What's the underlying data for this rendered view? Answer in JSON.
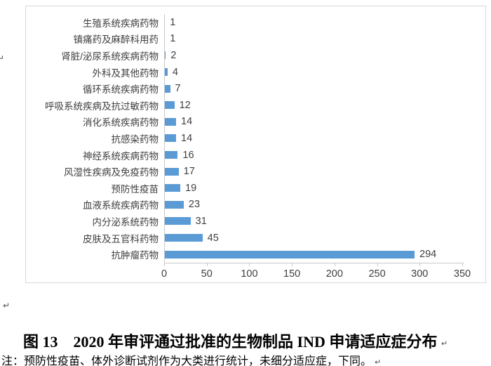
{
  "chart_data": {
    "type": "bar",
    "orientation": "horizontal",
    "categories": [
      "生殖系统疾病药物",
      "镇痛药及麻醉科用药",
      "肾脏/泌尿系统疾病药物",
      "外科及其他药物",
      "循环系统疾病药物",
      "呼吸系统疾病及抗过敏药物",
      "消化系统疾病药物",
      "抗感染药物",
      "神经系统疾病药物",
      "风湿性疾病及免疫药物",
      "预防性疫苗",
      "血液系统疾病药物",
      "内分泌系统药物",
      "皮肤及五官科药物",
      "抗肿瘤药物"
    ],
    "values": [
      1,
      1,
      2,
      4,
      7,
      12,
      14,
      14,
      16,
      17,
      19,
      23,
      31,
      45,
      294
    ],
    "data_labels": true,
    "xlim": [
      0,
      350
    ],
    "x_ticks": [
      0,
      50,
      100,
      150,
      200,
      250,
      300,
      350
    ],
    "bar_color": "#5b9bd5",
    "grid": false,
    "title": "",
    "xlabel": "",
    "ylabel": ""
  },
  "caption": {
    "text": "图 13　2020 年审评通过批准的生物制品 IND 申请适应症分布",
    "paragraph_mark": "↵"
  },
  "note": {
    "text": "注：预防性疫苗、体外诊断试剂作为大类进行统计，未细分适应症，下同。",
    "paragraph_mark": "↵"
  },
  "marks": {
    "left_margin_top": "↵",
    "left_margin_bottom": "↵"
  }
}
